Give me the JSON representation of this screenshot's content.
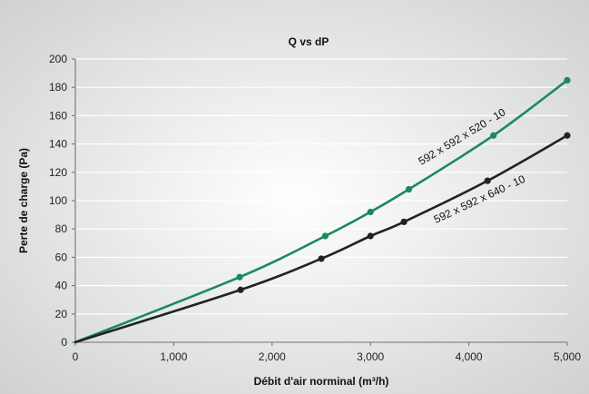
{
  "chart_data": {
    "type": "line",
    "title": "Q vs dP",
    "xlabel": "Débit d'air norminal (m³/h)",
    "ylabel": "Perte de charge (Pa)",
    "xlim": [
      0,
      5000
    ],
    "ylim": [
      0,
      200
    ],
    "x_ticks": [
      0,
      1000,
      2000,
      3000,
      4000,
      5000
    ],
    "x_tick_labels": [
      "0",
      "1,000",
      "2,000",
      "3,000",
      "4,000",
      "5,000"
    ],
    "y_ticks": [
      0,
      20,
      40,
      60,
      80,
      100,
      120,
      140,
      160,
      180,
      200
    ],
    "y_tick_labels": [
      "0",
      "20",
      "40",
      "60",
      "80",
      "100",
      "120",
      "140",
      "160",
      "180",
      "200"
    ],
    "grid": "horizontal",
    "series": [
      {
        "name": "592 x 592 x 520 - 10",
        "color": "#1a8a5a",
        "x": [
          0,
          1670,
          2540,
          3000,
          3390,
          4250,
          5000
        ],
        "y": [
          0,
          46,
          75,
          92,
          108,
          146,
          185
        ]
      },
      {
        "name": "592 x 592 x 640 - 10",
        "color": "#222222",
        "x": [
          0,
          1680,
          2500,
          3000,
          3340,
          4190,
          5000
        ],
        "y": [
          0,
          37,
          59,
          75,
          85,
          114,
          146
        ]
      }
    ],
    "background": {
      "gradient_center": "#ffffff",
      "gradient_edge": "#cfd1d3"
    }
  }
}
